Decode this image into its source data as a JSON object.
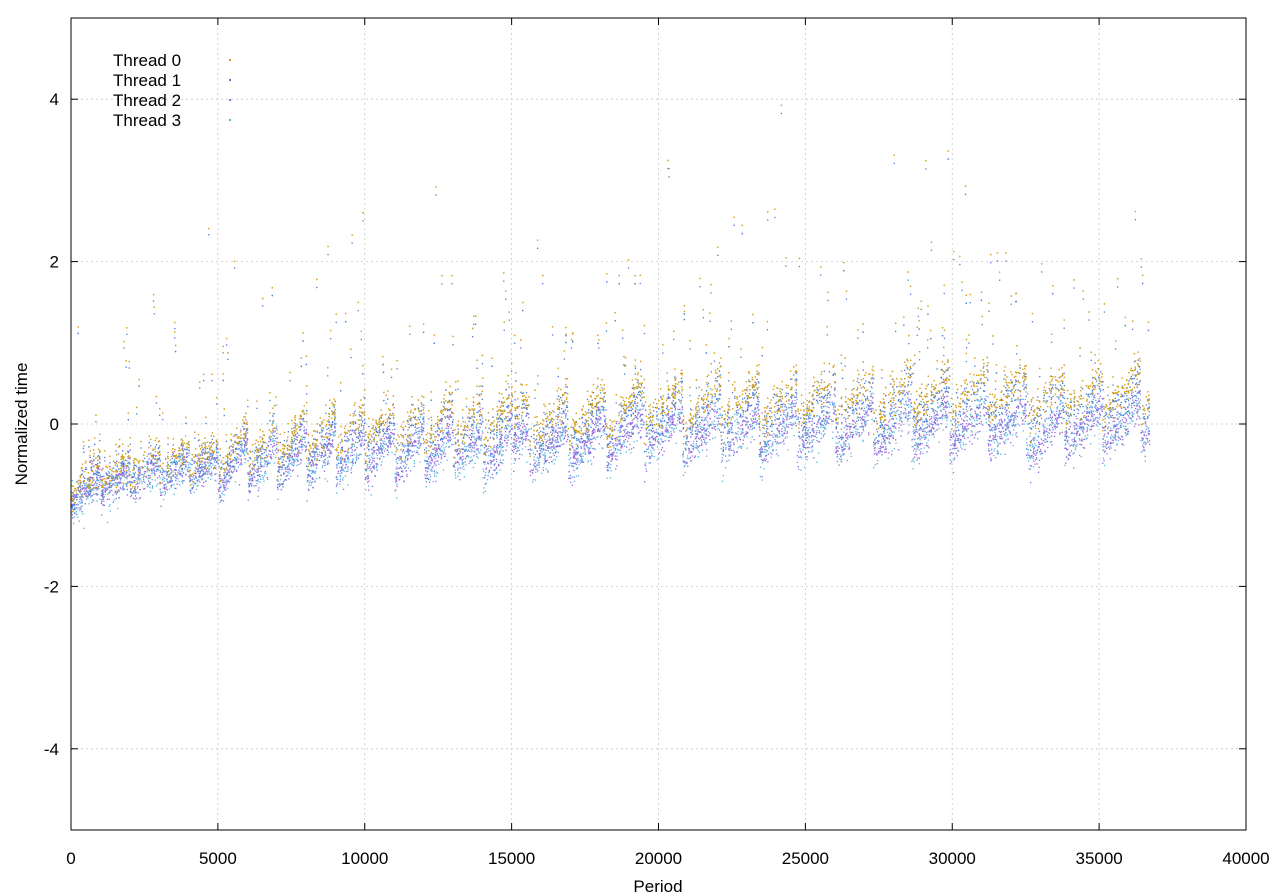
{
  "chart_data": {
    "type": "scatter",
    "title": "",
    "xlabel": "Period",
    "ylabel": "Normalized time",
    "xlim": [
      0,
      40000
    ],
    "ylim": [
      -5,
      5
    ],
    "x_ticks": [
      0,
      5000,
      10000,
      15000,
      20000,
      25000,
      30000,
      35000,
      40000
    ],
    "y_ticks": [
      -4,
      -2,
      0,
      2,
      4
    ],
    "x_tick_labels": [
      "0",
      "5000",
      "10000",
      "15000",
      "20000",
      "25000",
      "30000",
      "35000",
      "40000"
    ],
    "y_tick_labels": [
      "-4",
      "-2",
      "0",
      "2",
      "4"
    ],
    "grid": true,
    "legend_position": "top-left",
    "data_x_max": 36700,
    "series": [
      {
        "name": "Thread 0",
        "color": "#d4a017",
        "points": [
          [
            0,
            -0.72
          ],
          [
            1000,
            -0.6
          ],
          [
            2000,
            -0.5
          ],
          [
            3000,
            -0.42
          ],
          [
            4000,
            -0.38
          ],
          [
            5000,
            -0.3
          ],
          [
            6000,
            -0.25
          ],
          [
            7000,
            -0.15
          ],
          [
            8000,
            -0.1
          ],
          [
            9000,
            -0.05
          ],
          [
            10000,
            0.0
          ],
          [
            11000,
            0.0
          ],
          [
            12000,
            0.02
          ],
          [
            13000,
            0.05
          ],
          [
            14000,
            0.05
          ],
          [
            15000,
            0.1
          ],
          [
            16000,
            0.05
          ],
          [
            17000,
            0.1
          ],
          [
            18000,
            0.15
          ],
          [
            19000,
            0.25
          ],
          [
            20000,
            0.25
          ],
          [
            21000,
            0.25
          ],
          [
            22000,
            0.3
          ],
          [
            23000,
            0.3
          ],
          [
            24000,
            0.3
          ],
          [
            25000,
            0.35
          ],
          [
            26000,
            0.35
          ],
          [
            27000,
            0.35
          ],
          [
            28000,
            0.35
          ],
          [
            29000,
            0.4
          ],
          [
            30000,
            0.4
          ],
          [
            31000,
            0.4
          ],
          [
            32000,
            0.4
          ],
          [
            33000,
            0.35
          ],
          [
            34000,
            0.35
          ],
          [
            35000,
            0.4
          ],
          [
            36000,
            0.4
          ],
          [
            36700,
            0.45
          ]
        ]
      },
      {
        "name": "Thread 1",
        "color": "#4a7fd6",
        "points": [
          [
            0,
            -0.8
          ],
          [
            1000,
            -0.68
          ],
          [
            2000,
            -0.58
          ],
          [
            3000,
            -0.5
          ],
          [
            4000,
            -0.45
          ],
          [
            5000,
            -0.38
          ],
          [
            6000,
            -0.33
          ],
          [
            7000,
            -0.25
          ],
          [
            8000,
            -0.2
          ],
          [
            9000,
            -0.15
          ],
          [
            10000,
            -0.1
          ],
          [
            11000,
            -0.1
          ],
          [
            12000,
            -0.08
          ],
          [
            13000,
            -0.05
          ],
          [
            14000,
            -0.05
          ],
          [
            15000,
            0.0
          ],
          [
            16000,
            -0.05
          ],
          [
            17000,
            0.0
          ],
          [
            18000,
            0.05
          ],
          [
            19000,
            0.15
          ],
          [
            20000,
            0.15
          ],
          [
            21000,
            0.15
          ],
          [
            22000,
            0.2
          ],
          [
            23000,
            0.2
          ],
          [
            24000,
            0.2
          ],
          [
            25000,
            0.25
          ],
          [
            26000,
            0.25
          ],
          [
            27000,
            0.25
          ],
          [
            28000,
            0.25
          ],
          [
            29000,
            0.3
          ],
          [
            30000,
            0.3
          ],
          [
            31000,
            0.3
          ],
          [
            32000,
            0.3
          ],
          [
            33000,
            0.25
          ],
          [
            34000,
            0.25
          ],
          [
            35000,
            0.3
          ],
          [
            36000,
            0.3
          ],
          [
            36700,
            0.35
          ]
        ]
      },
      {
        "name": "Thread 2",
        "color": "#9966dd",
        "points": [
          [
            0,
            -0.85
          ],
          [
            1000,
            -0.72
          ],
          [
            2000,
            -0.65
          ],
          [
            3000,
            -0.6
          ],
          [
            4000,
            -0.55
          ],
          [
            5000,
            -0.5
          ],
          [
            6000,
            -0.48
          ],
          [
            7000,
            -0.42
          ],
          [
            8000,
            -0.4
          ],
          [
            9000,
            -0.38
          ],
          [
            10000,
            -0.35
          ],
          [
            11000,
            -0.35
          ],
          [
            12000,
            -0.33
          ],
          [
            13000,
            -0.3
          ],
          [
            14000,
            -0.32
          ],
          [
            15000,
            -0.3
          ],
          [
            16000,
            -0.3
          ],
          [
            17000,
            -0.25
          ],
          [
            18000,
            -0.2
          ],
          [
            19000,
            -0.1
          ],
          [
            20000,
            -0.1
          ],
          [
            21000,
            -0.12
          ],
          [
            22000,
            -0.08
          ],
          [
            23000,
            -0.08
          ],
          [
            24000,
            -0.08
          ],
          [
            25000,
            -0.05
          ],
          [
            26000,
            -0.05
          ],
          [
            27000,
            -0.05
          ],
          [
            28000,
            -0.05
          ],
          [
            29000,
            0.0
          ],
          [
            30000,
            0.0
          ],
          [
            31000,
            0.0
          ],
          [
            32000,
            0.0
          ],
          [
            33000,
            -0.2
          ],
          [
            34000,
            -0.05
          ],
          [
            35000,
            0.0
          ],
          [
            36000,
            0.0
          ],
          [
            36700,
            0.05
          ]
        ]
      },
      {
        "name": "Thread 3",
        "color": "#5ab4e0",
        "points": [
          [
            0,
            -0.9
          ],
          [
            1000,
            -0.75
          ],
          [
            2000,
            -0.68
          ],
          [
            3000,
            -0.62
          ],
          [
            4000,
            -0.6
          ],
          [
            5000,
            -0.55
          ],
          [
            6000,
            -0.5
          ],
          [
            7000,
            -0.45
          ],
          [
            8000,
            -0.42
          ],
          [
            9000,
            -0.4
          ],
          [
            10000,
            -0.38
          ],
          [
            11000,
            -0.38
          ],
          [
            12000,
            -0.36
          ],
          [
            13000,
            -0.35
          ],
          [
            14000,
            -0.38
          ],
          [
            15000,
            -0.35
          ],
          [
            16000,
            -0.32
          ],
          [
            17000,
            -0.28
          ],
          [
            18000,
            -0.22
          ],
          [
            19000,
            -0.12
          ],
          [
            20000,
            -0.12
          ],
          [
            21000,
            -0.14
          ],
          [
            22000,
            -0.1
          ],
          [
            23000,
            -0.1
          ],
          [
            24000,
            -0.1
          ],
          [
            25000,
            -0.08
          ],
          [
            26000,
            -0.06
          ],
          [
            27000,
            -0.06
          ],
          [
            28000,
            -0.06
          ],
          [
            29000,
            -0.02
          ],
          [
            30000,
            -0.02
          ],
          [
            31000,
            -0.02
          ],
          [
            32000,
            -0.02
          ],
          [
            33000,
            -0.1
          ],
          [
            34000,
            -0.05
          ],
          [
            35000,
            -0.02
          ],
          [
            36000,
            0.0
          ],
          [
            36700,
            0.02
          ]
        ]
      }
    ]
  }
}
